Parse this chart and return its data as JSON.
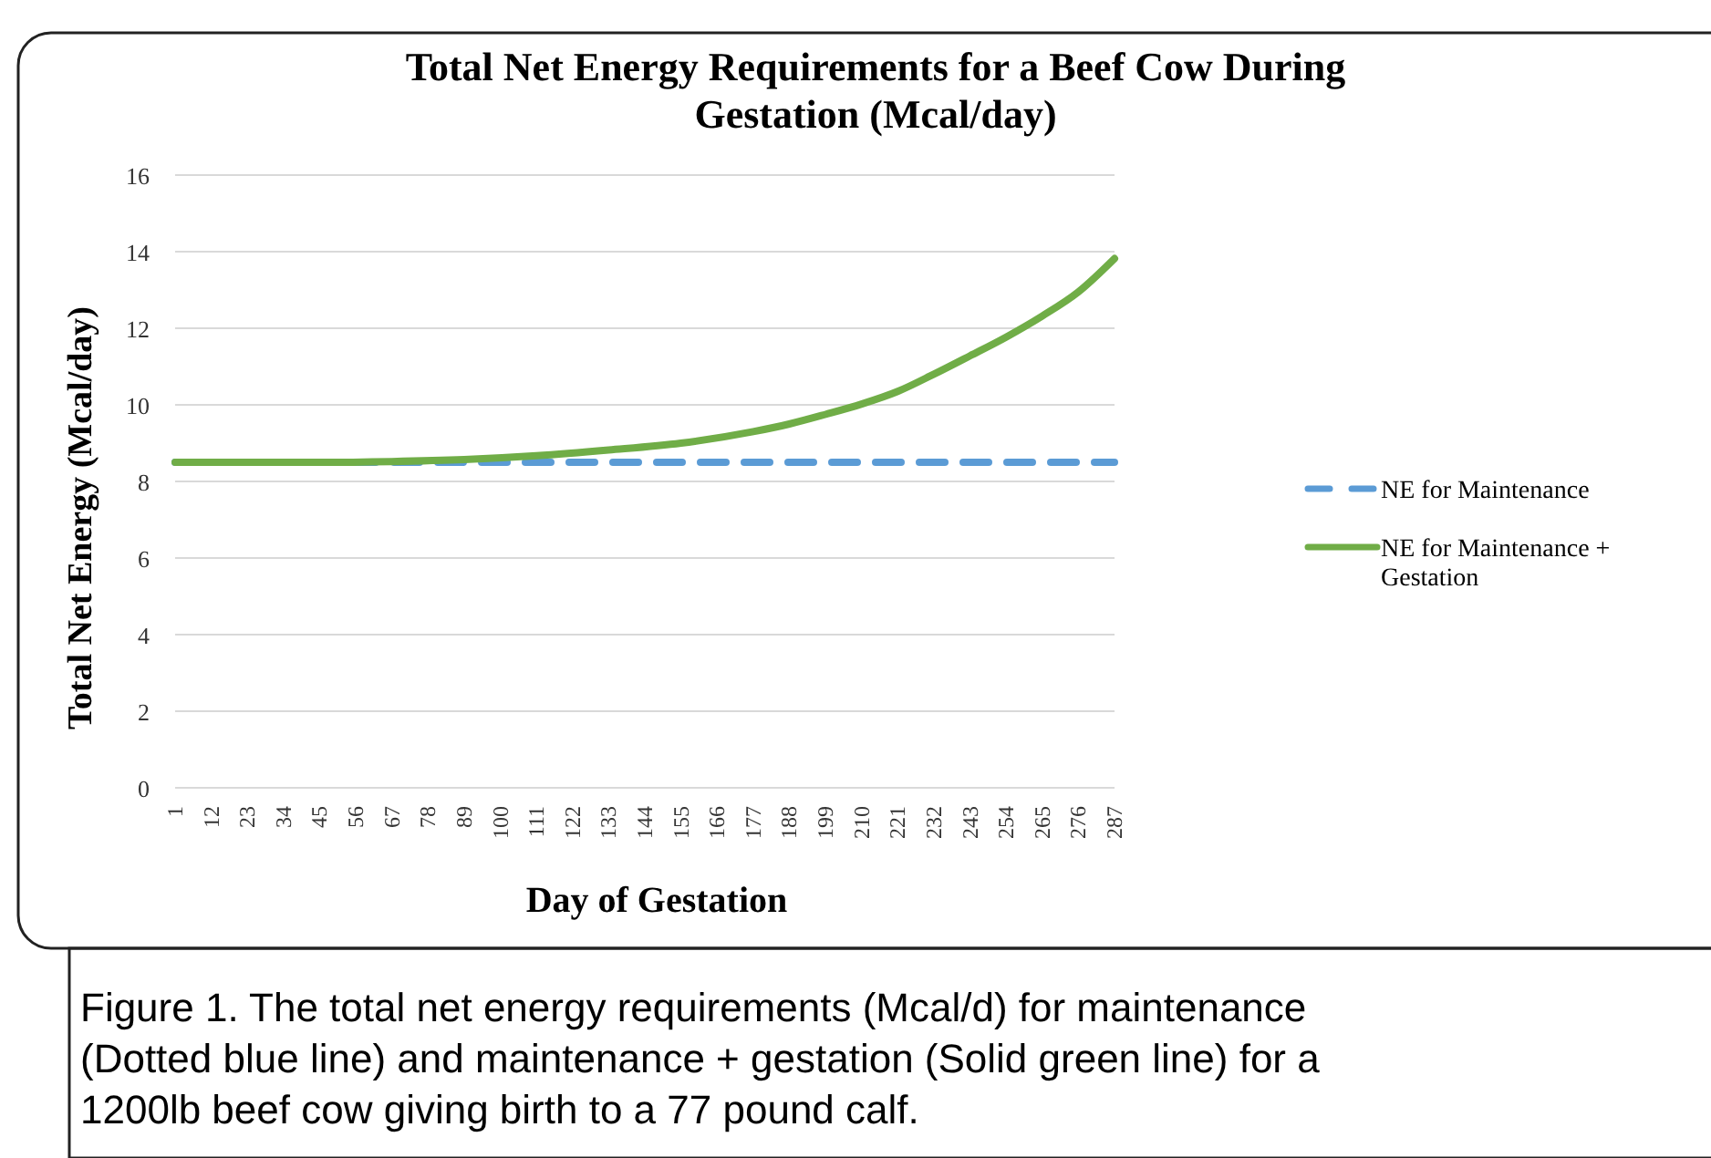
{
  "chart_data": {
    "type": "line",
    "title": "Total Net Energy Requirements for a Beef Cow During Gestation (Mcal/day)",
    "xlabel": "Day of Gestation",
    "ylabel": "Total Net Energy (Mcal/day)",
    "annotations": [
      "Figure 1. The total net energy requirements (Mcal/d) for maintenance (Dotted blue line) and maintenance + gestation (Solid green line) for a 1200lb beef cow giving birth to a 77 pound calf."
    ],
    "xlim": [
      1,
      287
    ],
    "xticks": [
      1,
      12,
      23,
      34,
      45,
      56,
      67,
      78,
      89,
      100,
      111,
      122,
      133,
      144,
      155,
      166,
      177,
      188,
      199,
      210,
      221,
      232,
      243,
      254,
      265,
      276,
      287
    ],
    "ylim": [
      0,
      16
    ],
    "yticks": [
      0,
      2,
      4,
      6,
      8,
      10,
      12,
      14,
      16
    ],
    "grid": "y",
    "legend": "right",
    "marker": "none",
    "series": [
      {
        "name": "NE for Maintenance",
        "color": "#5b9bd5",
        "line_style": "dashed",
        "x": [
          1,
          287
        ],
        "values": [
          8.5,
          8.5
        ]
      },
      {
        "name": "NE for Maintenance + Gestation",
        "color": "#70ad47",
        "line_style": "solid",
        "x": [
          1,
          45,
          67,
          89,
          111,
          133,
          155,
          177,
          188,
          199,
          210,
          221,
          232,
          243,
          254,
          265,
          276,
          287
        ],
        "values": [
          8.5,
          8.5,
          8.52,
          8.57,
          8.67,
          8.82,
          9.0,
          9.3,
          9.5,
          9.75,
          10.02,
          10.35,
          10.8,
          11.28,
          11.77,
          12.32,
          12.95,
          13.82
        ]
      }
    ]
  }
}
